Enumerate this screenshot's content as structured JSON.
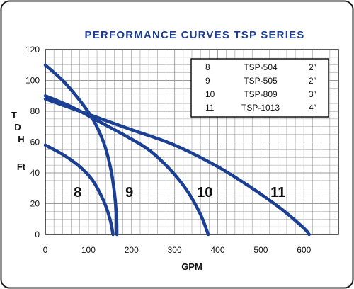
{
  "chart_data": {
    "type": "line",
    "title": "PERFORMANCE CURVES TSP SERIES",
    "xlabel": "GPM",
    "ylabel_letters": [
      "T",
      "D",
      "H"
    ],
    "ylabel_unit": "Ft",
    "xlim": [
      0,
      680
    ],
    "ylim": [
      0,
      120
    ],
    "x_ticks": [
      0,
      100,
      200,
      300,
      400,
      500,
      600
    ],
    "y_ticks": [
      0,
      20,
      40,
      60,
      80,
      100,
      120
    ],
    "grid": true,
    "colors": {
      "curve": "#1b3f93",
      "title": "#1b3f93",
      "grid": "#9a9a9a",
      "background": "#ffffff",
      "frame": "#222222"
    },
    "series": [
      {
        "label": "8",
        "label_at": [
          75,
          28
        ],
        "points": [
          [
            0,
            58
          ],
          [
            40,
            52
          ],
          [
            80,
            44
          ],
          [
            110,
            35
          ],
          [
            135,
            22
          ],
          [
            150,
            10
          ],
          [
            157,
            0
          ]
        ]
      },
      {
        "label": "9",
        "label_at": [
          195,
          28
        ],
        "points": [
          [
            0,
            110
          ],
          [
            40,
            100
          ],
          [
            80,
            87
          ],
          [
            110,
            75
          ],
          [
            135,
            60
          ],
          [
            150,
            45
          ],
          [
            160,
            28
          ],
          [
            165,
            12
          ],
          [
            166,
            0
          ]
        ]
      },
      {
        "label": "10",
        "label_at": [
          370,
          28
        ],
        "points": [
          [
            0,
            90
          ],
          [
            60,
            83
          ],
          [
            120,
            74
          ],
          [
            180,
            65
          ],
          [
            240,
            55
          ],
          [
            290,
            42
          ],
          [
            330,
            28
          ],
          [
            360,
            13
          ],
          [
            378,
            0
          ]
        ]
      },
      {
        "label": "11",
        "label_at": [
          540,
          28
        ],
        "points": [
          [
            0,
            88
          ],
          [
            100,
            78
          ],
          [
            200,
            68
          ],
          [
            300,
            58
          ],
          [
            400,
            44
          ],
          [
            480,
            30
          ],
          [
            550,
            16
          ],
          [
            600,
            4
          ],
          [
            612,
            0
          ]
        ]
      }
    ],
    "legend": {
      "position": "top-right",
      "rows": [
        {
          "curve": "8",
          "model": "TSP-504",
          "size": "2″"
        },
        {
          "curve": "9",
          "model": "TSP-505",
          "size": "2″"
        },
        {
          "curve": "10",
          "model": "TSP-809",
          "size": "3″"
        },
        {
          "curve": "11",
          "model": "TSP-1013",
          "size": "4″"
        }
      ]
    }
  }
}
